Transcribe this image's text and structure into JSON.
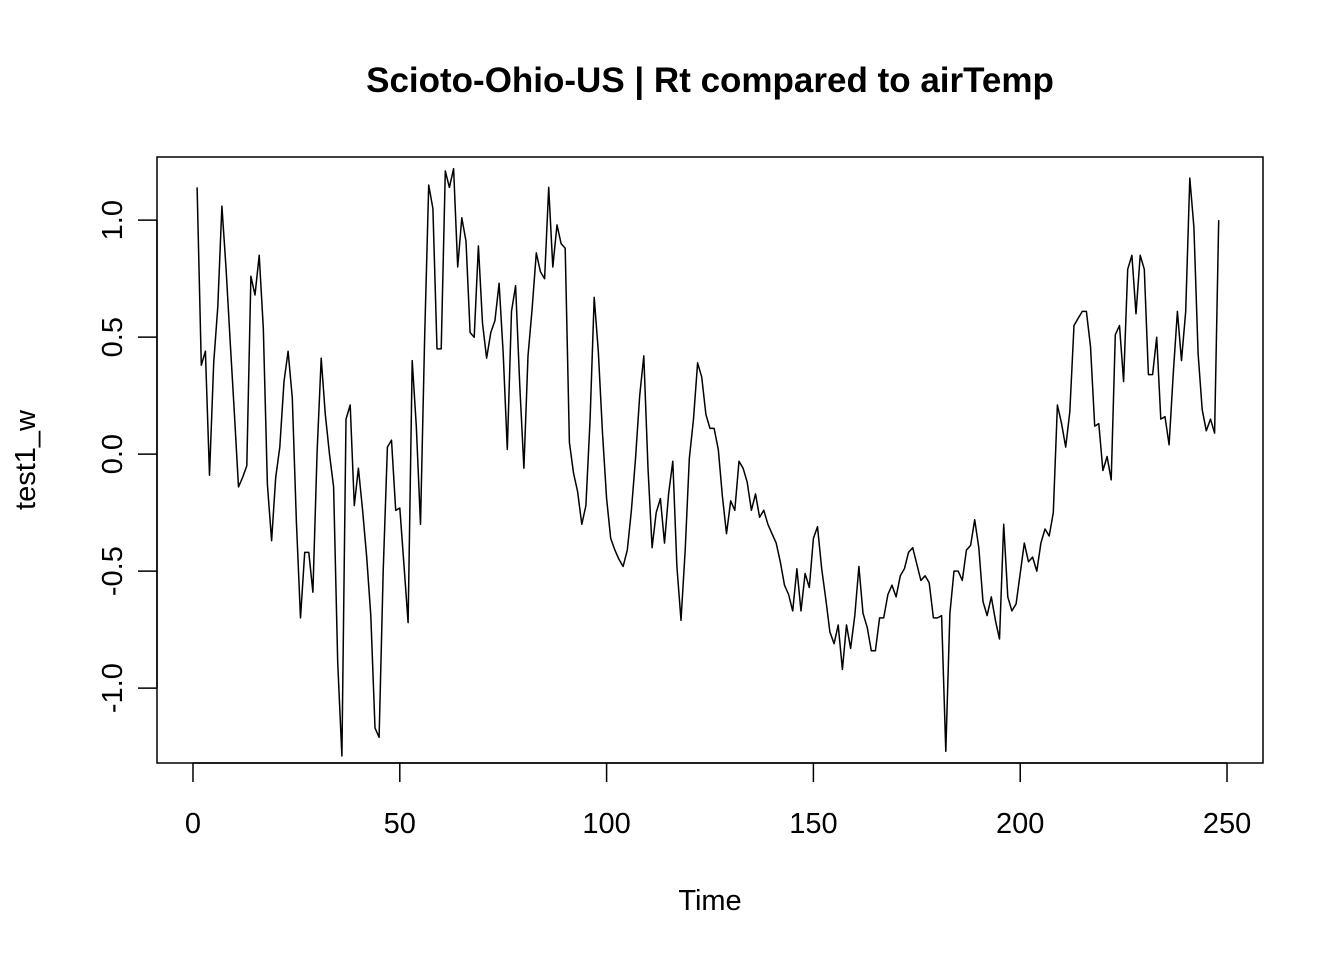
{
  "chart_data": {
    "type": "line",
    "title": "Scioto-Ohio-US | Rt compared to airTemp",
    "xlabel": "Time",
    "ylabel": "test1_w",
    "xlim": [
      -8.7,
      258.7
    ],
    "ylim": [
      -1.32,
      1.27
    ],
    "x_ticks": [
      0,
      50,
      100,
      150,
      200,
      250
    ],
    "x_tick_labels": [
      "0",
      "50",
      "100",
      "150",
      "200",
      "250"
    ],
    "y_ticks": [
      -1.0,
      -0.5,
      0.0,
      0.5,
      1.0
    ],
    "y_tick_labels": [
      "-1.0",
      "-0.5",
      "0.0",
      "0.5",
      "1.0"
    ],
    "grid": false,
    "line_color": "#000000",
    "series": [
      {
        "x_start": 1,
        "values": [
          1.14,
          0.38,
          0.44,
          -0.09,
          0.39,
          0.63,
          1.06,
          0.79,
          0.48,
          0.18,
          -0.14,
          -0.1,
          -0.05,
          0.76,
          0.68,
          0.85,
          0.54,
          -0.13,
          -0.37,
          -0.1,
          0.03,
          0.31,
          0.44,
          0.24,
          -0.29,
          -0.7,
          -0.42,
          -0.42,
          -0.59,
          0.01,
          0.41,
          0.17,
          0.0,
          -0.14,
          -0.89,
          -1.29,
          0.15,
          0.21,
          -0.22,
          -0.06,
          -0.24,
          -0.44,
          -0.69,
          -1.17,
          -1.21,
          -0.5,
          0.03,
          0.06,
          -0.24,
          -0.23,
          -0.47,
          -0.72,
          0.4,
          0.12,
          -0.3,
          0.49,
          1.15,
          1.05,
          0.45,
          0.45,
          1.21,
          1.14,
          1.22,
          0.8,
          1.01,
          0.91,
          0.52,
          0.5,
          0.89,
          0.56,
          0.41,
          0.52,
          0.57,
          0.73,
          0.43,
          0.02,
          0.61,
          0.72,
          0.3,
          -0.06,
          0.42,
          0.62,
          0.86,
          0.78,
          0.75,
          1.14,
          0.8,
          0.98,
          0.9,
          0.88,
          0.05,
          -0.08,
          -0.16,
          -0.3,
          -0.22,
          0.15,
          0.67,
          0.44,
          0.09,
          -0.19,
          -0.36,
          -0.41,
          -0.45,
          -0.48,
          -0.41,
          -0.24,
          -0.02,
          0.25,
          0.42,
          -0.06,
          -0.4,
          -0.25,
          -0.19,
          -0.38,
          -0.17,
          -0.03,
          -0.48,
          -0.71,
          -0.41,
          -0.02,
          0.15,
          0.39,
          0.33,
          0.17,
          0.11,
          0.11,
          0.02,
          -0.18,
          -0.34,
          -0.2,
          -0.24,
          -0.03,
          -0.06,
          -0.12,
          -0.24,
          -0.17,
          -0.27,
          -0.24,
          -0.3,
          -0.34,
          -0.38,
          -0.46,
          -0.56,
          -0.6,
          -0.67,
          -0.49,
          -0.67,
          -0.51,
          -0.57,
          -0.36,
          -0.31,
          -0.49,
          -0.62,
          -0.76,
          -0.81,
          -0.73,
          -0.92,
          -0.73,
          -0.83,
          -0.69,
          -0.48,
          -0.68,
          -0.74,
          -0.84,
          -0.84,
          -0.7,
          -0.7,
          -0.6,
          -0.56,
          -0.61,
          -0.52,
          -0.49,
          -0.42,
          -0.4,
          -0.47,
          -0.54,
          -0.52,
          -0.55,
          -0.7,
          -0.7,
          -0.69,
          -1.27,
          -0.68,
          -0.5,
          -0.5,
          -0.54,
          -0.41,
          -0.39,
          -0.28,
          -0.4,
          -0.63,
          -0.69,
          -0.61,
          -0.71,
          -0.79,
          -0.3,
          -0.61,
          -0.67,
          -0.64,
          -0.51,
          -0.38,
          -0.46,
          -0.44,
          -0.5,
          -0.38,
          -0.32,
          -0.35,
          -0.25,
          0.21,
          0.13,
          0.03,
          0.18,
          0.55,
          0.58,
          0.61,
          0.61,
          0.46,
          0.12,
          0.13,
          -0.07,
          -0.01,
          -0.11,
          0.51,
          0.55,
          0.31,
          0.79,
          0.85,
          0.6,
          0.85,
          0.79,
          0.34,
          0.34,
          0.5,
          0.15,
          0.16,
          0.04,
          0.34,
          0.61,
          0.4,
          0.61,
          1.18,
          0.97,
          0.43,
          0.19,
          0.1,
          0.15,
          0.09,
          1.0
        ]
      }
    ]
  }
}
